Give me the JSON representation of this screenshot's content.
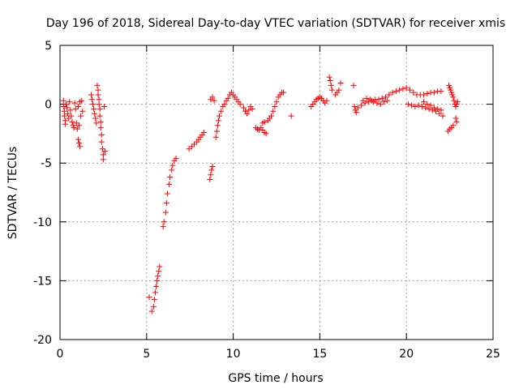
{
  "chart_data": {
    "type": "scatter",
    "title": "Day 196 of 2018, Sidereal Day-to-day VTEC variation (SDTVAR) for receiver xmis",
    "xlabel": "GPS time / hours",
    "ylabel": "SDTVAR / TECUs",
    "xlim": [
      0,
      25
    ],
    "ylim": [
      -20,
      5
    ],
    "xticks": [
      0,
      5,
      10,
      15,
      20,
      25
    ],
    "yticks": [
      5,
      0,
      -5,
      -10,
      -15,
      -20
    ],
    "grid": true,
    "marker": "+",
    "series": [
      {
        "name": "SDTVAR",
        "color": "#ff0000",
        "points": [
          [
            0.2,
            0.3
          ],
          [
            0.2,
            -0.2
          ],
          [
            0.25,
            -0.6
          ],
          [
            0.25,
            -1.0
          ],
          [
            0.3,
            -1.4
          ],
          [
            0.3,
            -1.7
          ],
          [
            0.35,
            0.0
          ],
          [
            0.4,
            -0.3
          ],
          [
            0.45,
            -0.8
          ],
          [
            0.5,
            -1.2
          ],
          [
            0.55,
            0.2
          ],
          [
            0.6,
            -0.5
          ],
          [
            0.65,
            -1.0
          ],
          [
            0.7,
            -1.5
          ],
          [
            0.75,
            -1.8
          ],
          [
            0.8,
            -2.0
          ],
          [
            0.85,
            0.1
          ],
          [
            0.9,
            -0.4
          ],
          [
            0.95,
            -1.6
          ],
          [
            1.0,
            -2.1
          ],
          [
            1.05,
            -0.2
          ],
          [
            1.1,
            -1.8
          ],
          [
            1.15,
            0.2
          ],
          [
            1.2,
            -1.0
          ],
          [
            1.25,
            0.3
          ],
          [
            1.3,
            -0.6
          ],
          [
            1.05,
            -3.0
          ],
          [
            1.1,
            -3.3
          ],
          [
            1.15,
            -3.6
          ],
          [
            1.8,
            0.8
          ],
          [
            1.85,
            0.4
          ],
          [
            1.9,
            0.0
          ],
          [
            1.95,
            -0.4
          ],
          [
            2.0,
            -0.8
          ],
          [
            2.05,
            -1.2
          ],
          [
            2.1,
            -1.6
          ],
          [
            2.15,
            1.6
          ],
          [
            2.2,
            1.2
          ],
          [
            2.2,
            0.8
          ],
          [
            2.25,
            0.4
          ],
          [
            2.25,
            0.0
          ],
          [
            2.3,
            -0.4
          ],
          [
            2.3,
            -1.0
          ],
          [
            2.35,
            -1.5
          ],
          [
            2.35,
            -2.0
          ],
          [
            2.4,
            -2.6
          ],
          [
            2.4,
            -3.2
          ],
          [
            2.45,
            -3.8
          ],
          [
            2.5,
            -4.3
          ],
          [
            2.5,
            -4.7
          ],
          [
            2.55,
            -0.2
          ],
          [
            2.6,
            -4.0
          ],
          [
            5.15,
            -16.4
          ],
          [
            5.3,
            -17.6
          ],
          [
            5.4,
            -17.2
          ],
          [
            5.45,
            -16.6
          ],
          [
            5.5,
            -16.0
          ],
          [
            5.55,
            -15.5
          ],
          [
            5.6,
            -15.0
          ],
          [
            5.65,
            -14.6
          ],
          [
            5.7,
            -14.2
          ],
          [
            5.75,
            -13.8
          ],
          [
            5.95,
            -10.4
          ],
          [
            6.0,
            -10.0
          ],
          [
            6.1,
            -9.2
          ],
          [
            6.15,
            -8.4
          ],
          [
            6.2,
            -7.6
          ],
          [
            6.3,
            -6.8
          ],
          [
            6.35,
            -6.2
          ],
          [
            6.45,
            -5.6
          ],
          [
            6.5,
            -5.2
          ],
          [
            6.6,
            -4.8
          ],
          [
            6.7,
            -4.6
          ],
          [
            7.45,
            -3.8
          ],
          [
            7.6,
            -3.6
          ],
          [
            7.75,
            -3.4
          ],
          [
            7.9,
            -3.2
          ],
          [
            8.0,
            -3.0
          ],
          [
            8.1,
            -2.8
          ],
          [
            8.2,
            -2.6
          ],
          [
            8.3,
            -2.4
          ],
          [
            8.65,
            -6.4
          ],
          [
            8.7,
            -6.0
          ],
          [
            8.75,
            -5.6
          ],
          [
            8.8,
            -5.3
          ],
          [
            8.7,
            0.4
          ],
          [
            8.8,
            0.6
          ],
          [
            8.9,
            0.3
          ],
          [
            9.0,
            -2.8
          ],
          [
            9.05,
            -2.3
          ],
          [
            9.1,
            -1.8
          ],
          [
            9.15,
            -1.4
          ],
          [
            9.2,
            -1.0
          ],
          [
            9.3,
            -0.6
          ],
          [
            9.4,
            -0.2
          ],
          [
            9.5,
            0.0
          ],
          [
            9.6,
            0.3
          ],
          [
            9.7,
            0.5
          ],
          [
            9.8,
            0.8
          ],
          [
            9.9,
            1.0
          ],
          [
            10.0,
            0.8
          ],
          [
            10.1,
            0.6
          ],
          [
            10.2,
            0.4
          ],
          [
            10.3,
            0.2
          ],
          [
            10.4,
            0.0
          ],
          [
            10.6,
            -0.3
          ],
          [
            10.7,
            -0.6
          ],
          [
            10.8,
            -0.8
          ],
          [
            10.9,
            -0.5
          ],
          [
            11.0,
            -0.2
          ],
          [
            11.1,
            -0.4
          ],
          [
            11.3,
            -2.0
          ],
          [
            11.4,
            -2.1
          ],
          [
            11.5,
            -2.2
          ],
          [
            11.6,
            -2.0
          ],
          [
            11.7,
            -2.2
          ],
          [
            11.8,
            -2.4
          ],
          [
            11.9,
            -2.5
          ],
          [
            11.7,
            -1.6
          ],
          [
            11.8,
            -1.5
          ],
          [
            12.0,
            -1.4
          ],
          [
            12.1,
            -1.2
          ],
          [
            12.2,
            -1.0
          ],
          [
            12.3,
            -0.6
          ],
          [
            12.4,
            -0.2
          ],
          [
            12.5,
            0.2
          ],
          [
            12.6,
            0.6
          ],
          [
            12.7,
            0.8
          ],
          [
            12.8,
            1.0
          ],
          [
            12.9,
            1.0
          ],
          [
            13.35,
            -1.0
          ],
          [
            14.5,
            -0.2
          ],
          [
            14.6,
            0.0
          ],
          [
            14.7,
            0.2
          ],
          [
            14.8,
            0.4
          ],
          [
            14.9,
            0.5
          ],
          [
            15.0,
            0.6
          ],
          [
            15.1,
            0.5
          ],
          [
            15.2,
            0.3
          ],
          [
            15.3,
            0.1
          ],
          [
            15.4,
            0.3
          ],
          [
            15.55,
            2.3
          ],
          [
            15.6,
            2.0
          ],
          [
            15.65,
            1.6
          ],
          [
            15.7,
            1.2
          ],
          [
            15.9,
            0.8
          ],
          [
            16.0,
            1.0
          ],
          [
            16.1,
            1.2
          ],
          [
            16.2,
            1.8
          ],
          [
            16.95,
            1.6
          ],
          [
            17.0,
            -0.2
          ],
          [
            17.05,
            -0.5
          ],
          [
            17.1,
            -0.7
          ],
          [
            17.2,
            -0.3
          ],
          [
            17.4,
            -0.1
          ],
          [
            17.6,
            0.1
          ],
          [
            17.8,
            0.2
          ],
          [
            18.0,
            0.3
          ],
          [
            18.2,
            0.4
          ],
          [
            18.4,
            0.4
          ],
          [
            18.6,
            0.5
          ],
          [
            18.8,
            0.6
          ],
          [
            19.0,
            0.8
          ],
          [
            19.2,
            1.0
          ],
          [
            19.4,
            1.1
          ],
          [
            19.6,
            1.2
          ],
          [
            19.8,
            1.3
          ],
          [
            20.0,
            1.4
          ],
          [
            20.2,
            1.2
          ],
          [
            20.4,
            1.0
          ],
          [
            20.6,
            0.8
          ],
          [
            20.8,
            0.8
          ],
          [
            21.0,
            0.8
          ],
          [
            21.2,
            0.9
          ],
          [
            21.4,
            1.0
          ],
          [
            21.6,
            1.0
          ],
          [
            21.8,
            1.1
          ],
          [
            22.0,
            1.1
          ],
          [
            17.5,
            0.3
          ],
          [
            17.7,
            0.5
          ],
          [
            17.9,
            0.4
          ],
          [
            18.1,
            0.2
          ],
          [
            18.3,
            0.1
          ],
          [
            18.5,
            0.0
          ],
          [
            18.7,
            0.2
          ],
          [
            18.9,
            0.3
          ],
          [
            20.1,
            0.0
          ],
          [
            20.3,
            -0.1
          ],
          [
            20.5,
            -0.2
          ],
          [
            20.7,
            -0.1
          ],
          [
            20.9,
            -0.2
          ],
          [
            21.1,
            -0.3
          ],
          [
            21.3,
            -0.4
          ],
          [
            21.5,
            -0.5
          ],
          [
            21.7,
            -0.6
          ],
          [
            21.9,
            -0.8
          ],
          [
            22.1,
            -1.0
          ],
          [
            21.0,
            0.2
          ],
          [
            21.2,
            0.0
          ],
          [
            21.4,
            -0.1
          ],
          [
            21.6,
            -0.3
          ],
          [
            21.8,
            -0.4
          ],
          [
            22.0,
            -0.5
          ],
          [
            22.45,
            1.6
          ],
          [
            22.5,
            1.4
          ],
          [
            22.55,
            1.2
          ],
          [
            22.6,
            1.0
          ],
          [
            22.65,
            0.8
          ],
          [
            22.7,
            0.6
          ],
          [
            22.75,
            0.3
          ],
          [
            22.8,
            0.0
          ],
          [
            22.85,
            -0.2
          ],
          [
            22.9,
            0.0
          ],
          [
            22.95,
            0.2
          ],
          [
            22.85,
            -1.2
          ],
          [
            22.9,
            -1.5
          ],
          [
            22.7,
            -1.8
          ],
          [
            22.6,
            -2.0
          ],
          [
            22.5,
            -2.1
          ],
          [
            22.4,
            -2.3
          ]
        ]
      }
    ]
  }
}
